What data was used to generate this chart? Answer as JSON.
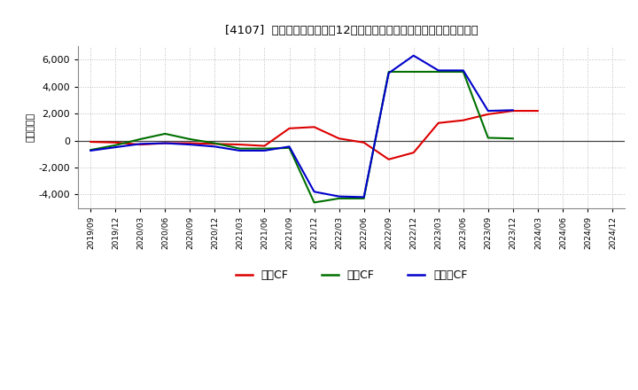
{
  "title": "[4107]  キャッシュフローの12か月移動合計の対前年同期増減額の推移",
  "ylabel": "（百万円）",
  "background_color": "#ffffff",
  "grid_color": "#bbbbbb",
  "x_labels": [
    "2019/09",
    "2019/12",
    "2020/03",
    "2020/06",
    "2020/09",
    "2020/12",
    "2021/03",
    "2021/06",
    "2021/09",
    "2021/12",
    "2022/03",
    "2022/06",
    "2022/09",
    "2022/12",
    "2023/03",
    "2023/06",
    "2023/09",
    "2023/12",
    "2024/03",
    "2024/06",
    "2024/09",
    "2024/12"
  ],
  "series": {
    "営業CF": {
      "color": "#dd0000",
      "values": [
        -100,
        -150,
        -300,
        -200,
        -200,
        -250,
        -300,
        -400,
        900,
        1000,
        150,
        -150,
        -1400,
        -900,
        1300,
        1500,
        1950,
        2200,
        2200,
        null,
        null,
        null
      ]
    },
    "投資CF": {
      "color": "#007000",
      "values": [
        -700,
        -350,
        100,
        500,
        100,
        -200,
        -600,
        -600,
        -550,
        -4600,
        -4300,
        -4300,
        5100,
        5100,
        5100,
        5100,
        200,
        150,
        null,
        null,
        null,
        null
      ]
    },
    "フリーCF": {
      "color": "#0000cc",
      "values": [
        -750,
        -500,
        -250,
        -200,
        -300,
        -450,
        -750,
        -750,
        -450,
        -3800,
        -4150,
        -4200,
        5000,
        6300,
        5200,
        5200,
        2200,
        2250,
        null,
        null,
        null,
        null
      ]
    }
  },
  "ylim": [
    -5000,
    7000
  ],
  "yticks": [
    -4000,
    -2000,
    0,
    2000,
    4000,
    6000
  ],
  "legend": {
    "labels": [
      "営業CF",
      "投資CF",
      "フリーCF"
    ],
    "colors": [
      "#dd0000",
      "#007000",
      "#0000cc"
    ]
  }
}
